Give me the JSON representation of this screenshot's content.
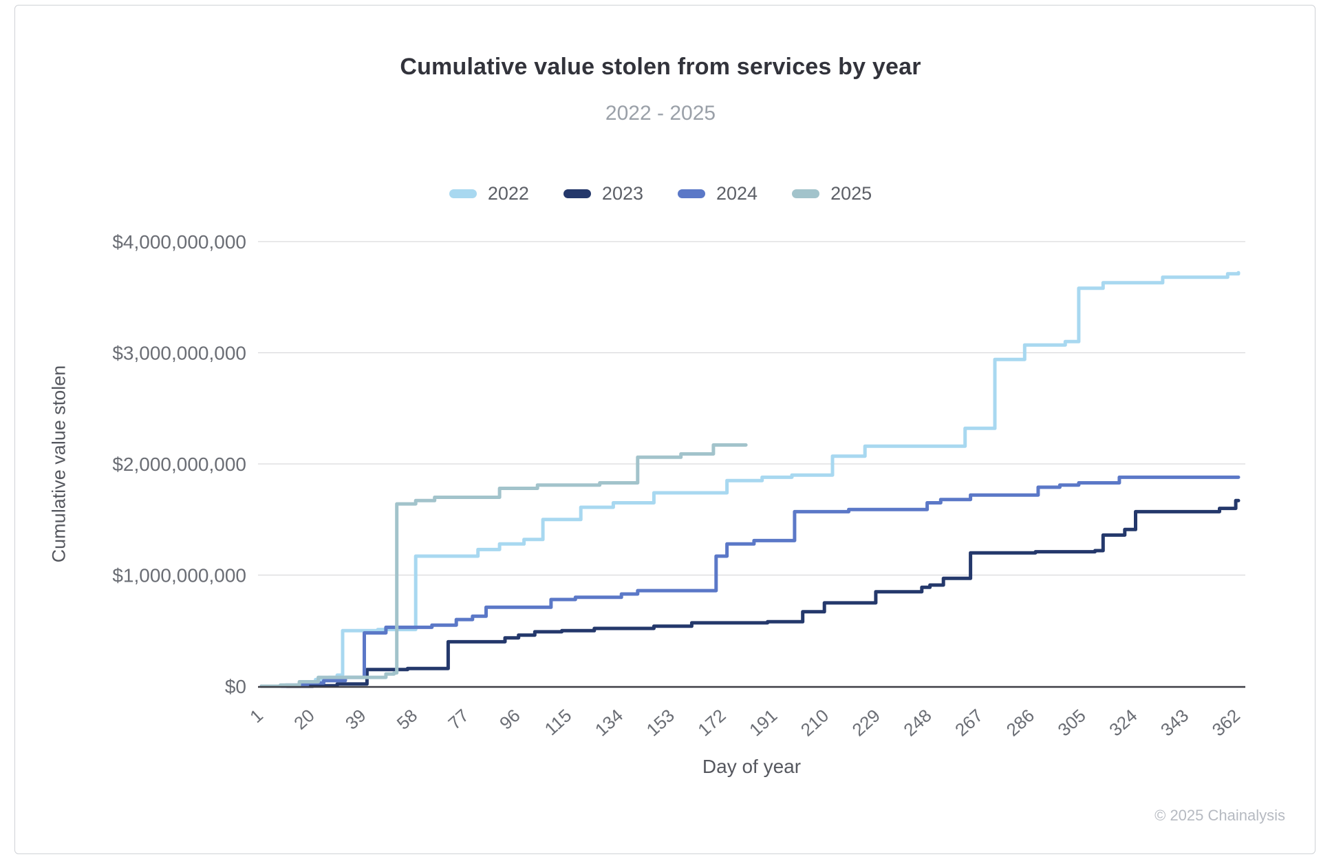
{
  "page": {
    "copyright": "© 2025 Chainalysis"
  },
  "chart_data": {
    "type": "line",
    "variant": "step-after",
    "title": "Cumulative value stolen from services by year",
    "subtitle": "2022 - 2025",
    "xlabel": "Day of year",
    "ylabel": "Cumulative value stolen",
    "units": "USD billions",
    "xlim": [
      1,
      365
    ],
    "ylim_billions": [
      0,
      4
    ],
    "grid": "horizontal",
    "legend_position": "top",
    "x_ticks": [
      1,
      20,
      39,
      58,
      77,
      96,
      115,
      134,
      153,
      172,
      191,
      210,
      229,
      248,
      267,
      286,
      305,
      324,
      343,
      362
    ],
    "y_tick_labels": [
      "$0",
      "$1,000,000,000",
      "$2,000,000,000",
      "$3,000,000,000",
      "$4,000,000,000"
    ],
    "series": [
      {
        "name": "2022",
        "color": "#a8d8f0",
        "points": [
          [
            1,
            0
          ],
          [
            8,
            0.01
          ],
          [
            15,
            0.03
          ],
          [
            21,
            0.06
          ],
          [
            26,
            0.08
          ],
          [
            29,
            0.1
          ],
          [
            31,
            0.5
          ],
          [
            44,
            0.51
          ],
          [
            58,
            1.17
          ],
          [
            81,
            1.23
          ],
          [
            89,
            1.28
          ],
          [
            98,
            1.32
          ],
          [
            105,
            1.5
          ],
          [
            119,
            1.61
          ],
          [
            131,
            1.65
          ],
          [
            146,
            1.74
          ],
          [
            173,
            1.85
          ],
          [
            186,
            1.88
          ],
          [
            197,
            1.9
          ],
          [
            212,
            2.07
          ],
          [
            224,
            2.16
          ],
          [
            261,
            2.32
          ],
          [
            272,
            2.94
          ],
          [
            283,
            3.07
          ],
          [
            298,
            3.1
          ],
          [
            303,
            3.58
          ],
          [
            312,
            3.63
          ],
          [
            334,
            3.68
          ],
          [
            358,
            3.71
          ],
          [
            362,
            3.72
          ]
        ]
      },
      {
        "name": "2023",
        "color": "#24386b",
        "points": [
          [
            1,
            0
          ],
          [
            20,
            0.005
          ],
          [
            29,
            0.02
          ],
          [
            40,
            0.15
          ],
          [
            55,
            0.16
          ],
          [
            70,
            0.4
          ],
          [
            91,
            0.435
          ],
          [
            96,
            0.46
          ],
          [
            102,
            0.49
          ],
          [
            112,
            0.5
          ],
          [
            124,
            0.52
          ],
          [
            146,
            0.54
          ],
          [
            160,
            0.57
          ],
          [
            188,
            0.58
          ],
          [
            201,
            0.67
          ],
          [
            209,
            0.75
          ],
          [
            228,
            0.85
          ],
          [
            245,
            0.89
          ],
          [
            248,
            0.91
          ],
          [
            253,
            0.97
          ],
          [
            263,
            1.2
          ],
          [
            287,
            1.21
          ],
          [
            309,
            1.22
          ],
          [
            312,
            1.36
          ],
          [
            320,
            1.41
          ],
          [
            324,
            1.57
          ],
          [
            355,
            1.6
          ],
          [
            361,
            1.67
          ],
          [
            362,
            1.67
          ]
        ]
      },
      {
        "name": "2024",
        "color": "#5b78c7",
        "points": [
          [
            1,
            0
          ],
          [
            10,
            0.01
          ],
          [
            18,
            0.03
          ],
          [
            24,
            0.05
          ],
          [
            32,
            0.08
          ],
          [
            39,
            0.48
          ],
          [
            47,
            0.53
          ],
          [
            64,
            0.55
          ],
          [
            73,
            0.6
          ],
          [
            79,
            0.63
          ],
          [
            84,
            0.71
          ],
          [
            108,
            0.78
          ],
          [
            117,
            0.8
          ],
          [
            134,
            0.83
          ],
          [
            140,
            0.86
          ],
          [
            169,
            1.17
          ],
          [
            173,
            1.28
          ],
          [
            183,
            1.31
          ],
          [
            198,
            1.57
          ],
          [
            218,
            1.59
          ],
          [
            247,
            1.65
          ],
          [
            252,
            1.68
          ],
          [
            263,
            1.72
          ],
          [
            288,
            1.79
          ],
          [
            296,
            1.81
          ],
          [
            303,
            1.83
          ],
          [
            318,
            1.88
          ],
          [
            362,
            1.88
          ]
        ]
      },
      {
        "name": "2025",
        "color": "#a2c3cb",
        "points": [
          [
            1,
            0
          ],
          [
            8,
            0.01
          ],
          [
            15,
            0.04
          ],
          [
            22,
            0.08
          ],
          [
            47,
            0.11
          ],
          [
            50,
            0.12
          ],
          [
            51,
            1.64
          ],
          [
            58,
            1.67
          ],
          [
            65,
            1.7
          ],
          [
            89,
            1.78
          ],
          [
            103,
            1.81
          ],
          [
            126,
            1.83
          ],
          [
            140,
            2.06
          ],
          [
            156,
            2.09
          ],
          [
            168,
            2.17
          ],
          [
            180,
            2.17
          ]
        ]
      }
    ]
  }
}
